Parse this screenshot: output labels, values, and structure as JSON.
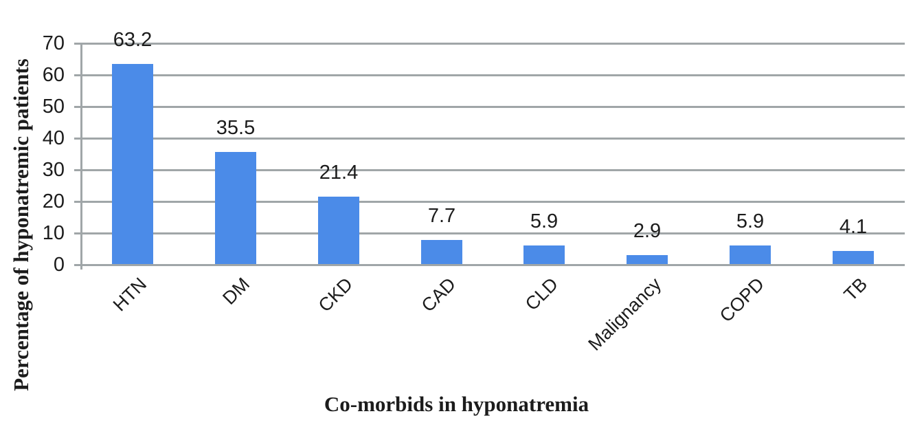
{
  "chart_data": {
    "type": "bar",
    "title": "",
    "xlabel": "Co-morbids in hyponatremia",
    "ylabel": "Percentage of hyponatremic patients",
    "categories": [
      "HTN",
      "DM",
      "CKD",
      "CAD",
      "CLD",
      "Malignancy",
      "COPD",
      "TB"
    ],
    "values": [
      63.2,
      35.5,
      21.4,
      7.7,
      5.9,
      2.9,
      5.9,
      4.1
    ],
    "data_labels": [
      "63.2",
      "35.5",
      "21.4",
      "7.7",
      "5.9",
      "2.9",
      "5.9",
      "4.1"
    ],
    "ylim": [
      0,
      70
    ],
    "yticks": [
      0,
      10,
      20,
      30,
      40,
      50,
      60,
      70
    ],
    "ytick_labels": [
      "0",
      "10",
      "20",
      "30",
      "40",
      "50",
      "60",
      "70"
    ],
    "grid": "horizontal",
    "legend": "none",
    "bar_color": "#4b8be8",
    "grid_color": "#a0a6a8",
    "axis_color": "#a0a6a8",
    "text_color": "#1c1c1c",
    "background_color": "#ffffff"
  }
}
